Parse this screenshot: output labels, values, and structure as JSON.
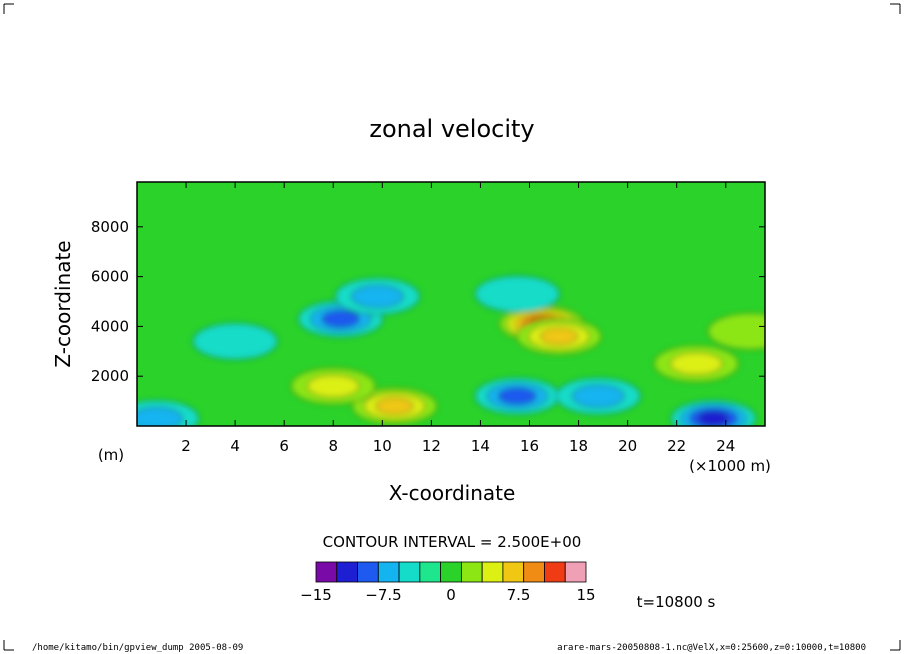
{
  "chart_data": {
    "type": "heatmap",
    "title": "zonal velocity",
    "xlabel": "X-coordinate",
    "ylabel": "Z-coordinate",
    "x_units": "(×1000 m)",
    "y_units": "(m)",
    "xlim": [
      0,
      25.6
    ],
    "ylim": [
      0,
      9800
    ],
    "x_ticks": [
      2,
      4,
      6,
      8,
      10,
      12,
      14,
      16,
      18,
      20,
      22,
      24
    ],
    "y_ticks": [
      2000,
      4000,
      6000,
      8000
    ],
    "contour_interval_text": "CONTOUR INTERVAL = 2.500E+00",
    "colorbar": {
      "levels": [
        -15,
        -12.5,
        -10,
        -7.5,
        -5,
        -2.5,
        0,
        2.5,
        5,
        7.5,
        10,
        12.5,
        15
      ],
      "labels": [
        "−15",
        "−7.5",
        "0",
        "7.5",
        "15"
      ],
      "label_values": [
        -15,
        -7.5,
        0,
        7.5,
        15
      ],
      "colors": [
        "#7a0aa8",
        "#1e1ed2",
        "#1e5af0",
        "#14b4f0",
        "#14dcc8",
        "#1ee68c",
        "#2ad22a",
        "#8ce614",
        "#dcf014",
        "#f0c814",
        "#f08c14",
        "#f03c14",
        "#f0a0b4"
      ]
    },
    "time_text": "t=10800 s",
    "features": [
      {
        "x": 16.5,
        "z": 4100,
        "value": 13.8
      },
      {
        "x": 17.2,
        "z": 3600,
        "value": 8.5
      },
      {
        "x": 10.5,
        "z": 800,
        "value": 9.0
      },
      {
        "x": 8.0,
        "z": 1600,
        "value": 5.5
      },
      {
        "x": 8.3,
        "z": 4300,
        "value": -9.5
      },
      {
        "x": 9.8,
        "z": 5200,
        "value": -7.0
      },
      {
        "x": 4.0,
        "z": 3400,
        "value": -4.0
      },
      {
        "x": 15.5,
        "z": 5300,
        "value": -3.5
      },
      {
        "x": 15.5,
        "z": 1200,
        "value": -8.0
      },
      {
        "x": 18.8,
        "z": 1200,
        "value": -7.0
      },
      {
        "x": 23.5,
        "z": 300,
        "value": -11.0
      },
      {
        "x": 0.8,
        "z": 300,
        "value": -7.0
      },
      {
        "x": 22.8,
        "z": 2500,
        "value": 6.5
      },
      {
        "x": 24.0,
        "z": 7600,
        "value": -1.5
      },
      {
        "x": 25.0,
        "z": 3800,
        "value": 4.0
      }
    ]
  },
  "footer": {
    "left": "/home/kitamo/bin/gpview_dump  2005-08-09",
    "right": "arare-mars-20050808-1.nc@VelX,x=0:25600,z=0:10000,t=10800"
  }
}
